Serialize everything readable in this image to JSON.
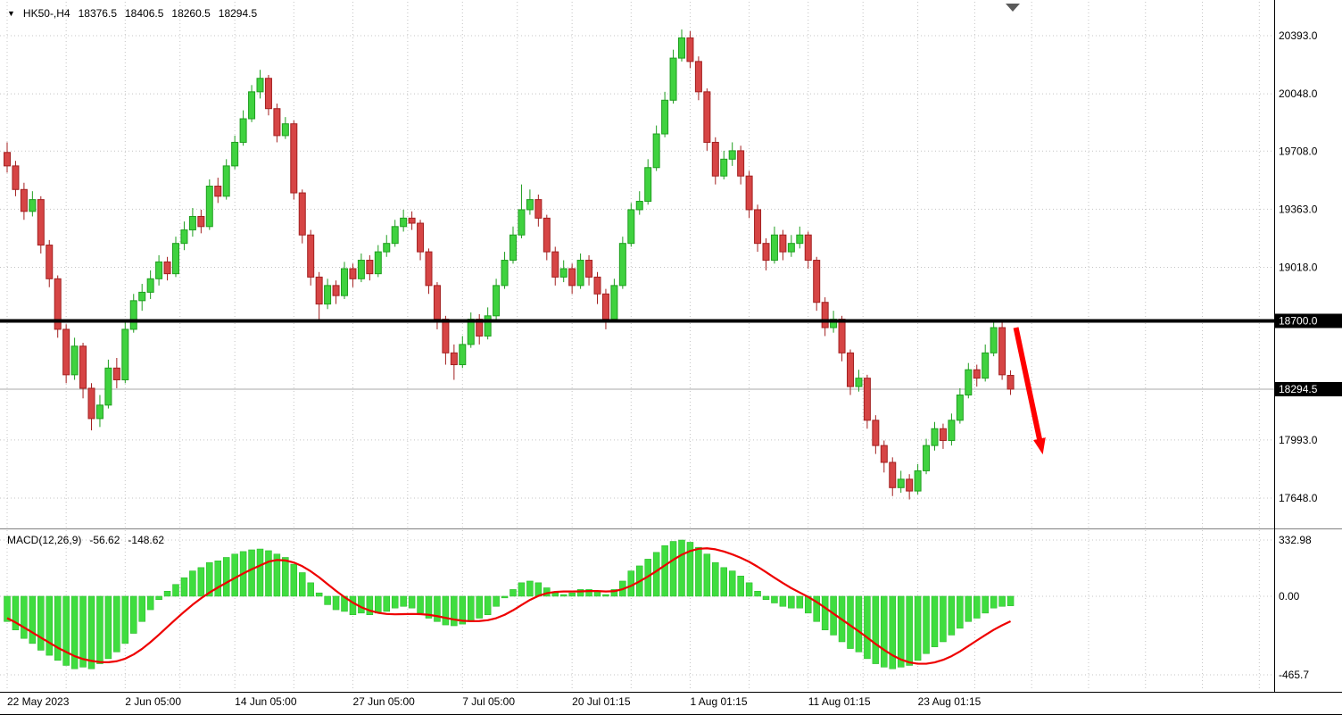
{
  "header": {
    "collapse_icon": "▼",
    "symbol": "HK50-,H4",
    "open": "18376.5",
    "high": "18406.5",
    "low": "18260.5",
    "close": "18294.5"
  },
  "macd_header": {
    "label": "MACD(12,26,9)",
    "macd": "-56.62",
    "signal": "-148.62"
  },
  "chart_data": {
    "type": "candlestick",
    "symbol": "HK50-",
    "timeframe": "H4",
    "current_ohlc": {
      "open": 18376.5,
      "high": 18406.5,
      "low": 18260.5,
      "close": 18294.5
    },
    "price_axis": {
      "grid_labels": [
        "20393.0",
        "20048.0",
        "19708.0",
        "19363.0",
        "19018.0",
        "17993.0",
        "17648.0"
      ],
      "grid_values": [
        20393.0,
        20048.0,
        19708.0,
        19363.0,
        19018.0,
        17993.0,
        17648.0
      ],
      "badges": [
        {
          "label": "18700.0",
          "value": 18700.0
        },
        {
          "label": "18294.5",
          "value": 18294.5
        }
      ]
    },
    "time_axis": {
      "labels": [
        {
          "text": "22 May 2023",
          "index": 0
        },
        {
          "text": "2 Jun 05:00",
          "index": 14
        },
        {
          "text": "14 Jun 05:00",
          "index": 27
        },
        {
          "text": "27 Jun 05:00",
          "index": 41
        },
        {
          "text": "7 Jul 05:00",
          "index": 54
        },
        {
          "text": "20 Jul 01:15",
          "index": 67
        },
        {
          "text": "1 Aug 01:15",
          "index": 81
        },
        {
          "text": "11 Aug 01:15",
          "index": 95
        },
        {
          "text": "23 Aug 01:15",
          "index": 108
        }
      ]
    },
    "hline": {
      "value": 18700.0,
      "color": "#000000",
      "width": 4
    },
    "current_price_line": {
      "value": 18294.5,
      "color": "#a8a8a8"
    },
    "trend_arrow": {
      "direction": "down-right",
      "color": "#ff0000",
      "from_value": 18660,
      "to_value": 17900
    },
    "colors": {
      "up_fill": "#3fd23f",
      "up_stroke": "#1f9e1f",
      "down_fill": "#d64545",
      "down_stroke": "#a32020",
      "grid": "#c4c4c4",
      "background": "#ffffff",
      "text": "#000000",
      "separator": "#808080",
      "axis_line": "#000000"
    },
    "candles": [
      [
        19700,
        19760,
        19580,
        19620
      ],
      [
        19620,
        19650,
        19440,
        19480
      ],
      [
        19480,
        19520,
        19300,
        19350
      ],
      [
        19350,
        19470,
        19320,
        19420
      ],
      [
        19420,
        19440,
        19100,
        19150
      ],
      [
        19150,
        19180,
        18900,
        18950
      ],
      [
        18950,
        18970,
        18600,
        18650
      ],
      [
        18650,
        18680,
        18330,
        18380
      ],
      [
        18380,
        18600,
        18350,
        18550
      ],
      [
        18550,
        18570,
        18240,
        18300
      ],
      [
        18300,
        18330,
        18050,
        18120
      ],
      [
        18120,
        18260,
        18070,
        18200
      ],
      [
        18200,
        18470,
        18180,
        18420
      ],
      [
        18420,
        18480,
        18300,
        18350
      ],
      [
        18350,
        18700,
        18330,
        18650
      ],
      [
        18650,
        18860,
        18630,
        18820
      ],
      [
        18820,
        18920,
        18760,
        18870
      ],
      [
        18870,
        19000,
        18830,
        18950
      ],
      [
        18950,
        19090,
        18910,
        19050
      ],
      [
        19050,
        19080,
        18940,
        18980
      ],
      [
        18980,
        19200,
        18960,
        19160
      ],
      [
        19160,
        19290,
        19120,
        19240
      ],
      [
        19240,
        19370,
        19200,
        19320
      ],
      [
        19320,
        19360,
        19220,
        19260
      ],
      [
        19260,
        19540,
        19240,
        19500
      ],
      [
        19500,
        19550,
        19400,
        19440
      ],
      [
        19440,
        19660,
        19420,
        19620
      ],
      [
        19620,
        19800,
        19600,
        19760
      ],
      [
        19760,
        19950,
        19740,
        19900
      ],
      [
        19900,
        20100,
        19880,
        20060
      ],
      [
        20060,
        20190,
        20020,
        20140
      ],
      [
        20140,
        20160,
        19920,
        19960
      ],
      [
        19960,
        19990,
        19760,
        19800
      ],
      [
        19800,
        19910,
        19780,
        19870
      ],
      [
        19870,
        19890,
        19420,
        19460
      ],
      [
        19460,
        19480,
        19160,
        19210
      ],
      [
        19210,
        19240,
        18910,
        18960
      ],
      [
        18960,
        18990,
        18700,
        18800
      ],
      [
        18800,
        18950,
        18770,
        18910
      ],
      [
        18910,
        18940,
        18800,
        18850
      ],
      [
        18850,
        19050,
        18830,
        19010
      ],
      [
        19010,
        19040,
        18900,
        18950
      ],
      [
        18950,
        19100,
        18930,
        19060
      ],
      [
        19060,
        19090,
        18940,
        18980
      ],
      [
        18980,
        19150,
        18960,
        19110
      ],
      [
        19110,
        19210,
        19080,
        19160
      ],
      [
        19160,
        19300,
        19140,
        19260
      ],
      [
        19260,
        19360,
        19230,
        19310
      ],
      [
        19310,
        19350,
        19240,
        19280
      ],
      [
        19280,
        19300,
        19060,
        19110
      ],
      [
        19110,
        19130,
        18860,
        18910
      ],
      [
        18910,
        18930,
        18650,
        18710
      ],
      [
        18710,
        18730,
        18440,
        18510
      ],
      [
        18510,
        18560,
        18350,
        18440
      ],
      [
        18440,
        18610,
        18420,
        18560
      ],
      [
        18560,
        18750,
        18540,
        18710
      ],
      [
        18710,
        18740,
        18560,
        18610
      ],
      [
        18610,
        18780,
        18590,
        18730
      ],
      [
        18730,
        18950,
        18710,
        18910
      ],
      [
        18910,
        19110,
        18890,
        19060
      ],
      [
        19060,
        19260,
        19040,
        19210
      ],
      [
        19210,
        19510,
        19190,
        19360
      ],
      [
        19360,
        19480,
        19330,
        19420
      ],
      [
        19420,
        19450,
        19260,
        19310
      ],
      [
        19310,
        19330,
        19060,
        19110
      ],
      [
        19110,
        19140,
        18910,
        18960
      ],
      [
        18960,
        19060,
        18930,
        19010
      ],
      [
        19010,
        19040,
        18860,
        18910
      ],
      [
        18910,
        19100,
        18890,
        19060
      ],
      [
        19060,
        19090,
        18910,
        18960
      ],
      [
        18960,
        18990,
        18800,
        18860
      ],
      [
        18860,
        18890,
        18650,
        18710
      ],
      [
        18710,
        18950,
        18690,
        18910
      ],
      [
        18910,
        19200,
        18890,
        19160
      ],
      [
        19160,
        19400,
        19140,
        19360
      ],
      [
        19360,
        19470,
        19330,
        19410
      ],
      [
        19410,
        19660,
        19390,
        19610
      ],
      [
        19610,
        19860,
        19590,
        19810
      ],
      [
        19810,
        20060,
        19790,
        20010
      ],
      [
        20010,
        20310,
        19990,
        20260
      ],
      [
        20260,
        20430,
        20240,
        20380
      ],
      [
        20380,
        20420,
        20200,
        20240
      ],
      [
        20240,
        20270,
        20010,
        20060
      ],
      [
        20060,
        20080,
        19710,
        19760
      ],
      [
        19760,
        19790,
        19510,
        19560
      ],
      [
        19560,
        19710,
        19540,
        19660
      ],
      [
        19660,
        19760,
        19620,
        19710
      ],
      [
        19710,
        19740,
        19510,
        19560
      ],
      [
        19560,
        19590,
        19310,
        19360
      ],
      [
        19360,
        19390,
        19110,
        19160
      ],
      [
        19160,
        19190,
        19000,
        19060
      ],
      [
        19060,
        19260,
        19040,
        19210
      ],
      [
        19210,
        19240,
        19060,
        19110
      ],
      [
        19110,
        19210,
        19080,
        19160
      ],
      [
        19160,
        19260,
        19130,
        19210
      ],
      [
        19210,
        19230,
        19010,
        19060
      ],
      [
        19060,
        19080,
        18760,
        18810
      ],
      [
        18810,
        18840,
        18610,
        18660
      ],
      [
        18660,
        18760,
        18630,
        18710
      ],
      [
        18710,
        18730,
        18460,
        18510
      ],
      [
        18510,
        18530,
        18260,
        18310
      ],
      [
        18310,
        18410,
        18280,
        18360
      ],
      [
        18360,
        18380,
        18060,
        18110
      ],
      [
        18110,
        18140,
        17910,
        17960
      ],
      [
        17960,
        17990,
        17800,
        17860
      ],
      [
        17860,
        17890,
        17660,
        17710
      ],
      [
        17710,
        17810,
        17680,
        17760
      ],
      [
        17760,
        17790,
        17640,
        17690
      ],
      [
        17690,
        17850,
        17670,
        17810
      ],
      [
        17810,
        18000,
        17790,
        17960
      ],
      [
        17960,
        18100,
        17930,
        18060
      ],
      [
        18060,
        18090,
        17940,
        17990
      ],
      [
        17990,
        18150,
        17960,
        18110
      ],
      [
        18110,
        18300,
        18090,
        18260
      ],
      [
        18260,
        18450,
        18240,
        18410
      ],
      [
        18410,
        18440,
        18310,
        18360
      ],
      [
        18360,
        18560,
        18340,
        18510
      ],
      [
        18510,
        18700,
        18490,
        18660
      ],
      [
        18660,
        18690,
        18350,
        18380
      ],
      [
        18376.5,
        18406.5,
        18260.5,
        18294.5
      ]
    ],
    "macd": {
      "type": "histogram+line",
      "axis_labels": [
        "332.98",
        "0.00",
        "-465.7"
      ],
      "axis_values": [
        332.98,
        0,
        -465.7
      ],
      "histogram_color": "#3fdd3f",
      "histogram_stroke": "#24b324",
      "signal_color": "#ee0000",
      "histogram": [
        -150,
        -200,
        -250,
        -280,
        -320,
        -350,
        -380,
        -410,
        -430,
        -420,
        -430,
        -400,
        -370,
        -330,
        -280,
        -220,
        -150,
        -80,
        -20,
        30,
        70,
        110,
        150,
        170,
        200,
        210,
        230,
        250,
        265,
        275,
        280,
        270,
        250,
        230,
        190,
        140,
        80,
        20,
        -50,
        -80,
        -90,
        -110,
        -100,
        -110,
        -100,
        -90,
        -70,
        -60,
        -70,
        -100,
        -130,
        -150,
        -170,
        -175,
        -165,
        -145,
        -130,
        -110,
        -60,
        -10,
        40,
        80,
        90,
        80,
        50,
        20,
        10,
        20,
        40,
        40,
        30,
        10,
        40,
        90,
        150,
        180,
        220,
        260,
        300,
        325,
        333,
        320,
        290,
        250,
        200,
        170,
        150,
        120,
        80,
        30,
        -20,
        -40,
        -60,
        -70,
        -70,
        -100,
        -150,
        -200,
        -230,
        -270,
        -310,
        -330,
        -370,
        -400,
        -420,
        -430,
        -420,
        -410,
        -380,
        -340,
        -300,
        -270,
        -230,
        -190,
        -150,
        -130,
        -100,
        -70,
        -60,
        -56.62
      ],
      "signal": [
        -130,
        -155,
        -185,
        -215,
        -245,
        -275,
        -305,
        -330,
        -355,
        -372,
        -383,
        -390,
        -391,
        -385,
        -370,
        -345,
        -312,
        -272,
        -228,
        -182,
        -136,
        -92,
        -50,
        -12,
        22,
        52,
        80,
        108,
        135,
        160,
        182,
        205,
        215,
        212,
        200,
        178,
        148,
        112,
        72,
        32,
        -5,
        -38,
        -65,
        -85,
        -98,
        -105,
        -107,
        -106,
        -105,
        -106,
        -110,
        -118,
        -128,
        -138,
        -145,
        -148,
        -147,
        -142,
        -130,
        -110,
        -83,
        -52,
        -22,
        2,
        18,
        26,
        28,
        28,
        29,
        31,
        31,
        28,
        30,
        42,
        62,
        88,
        117,
        149,
        183,
        216,
        246,
        268,
        281,
        284,
        278,
        265,
        248,
        228,
        204,
        175,
        143,
        110,
        78,
        48,
        22,
        -4,
        -34,
        -68,
        -103,
        -138,
        -173,
        -208,
        -245,
        -283,
        -318,
        -350,
        -375,
        -392,
        -400,
        -400,
        -392,
        -377,
        -355,
        -327,
        -295,
        -262,
        -230,
        -199,
        -172,
        -148.62
      ]
    }
  }
}
